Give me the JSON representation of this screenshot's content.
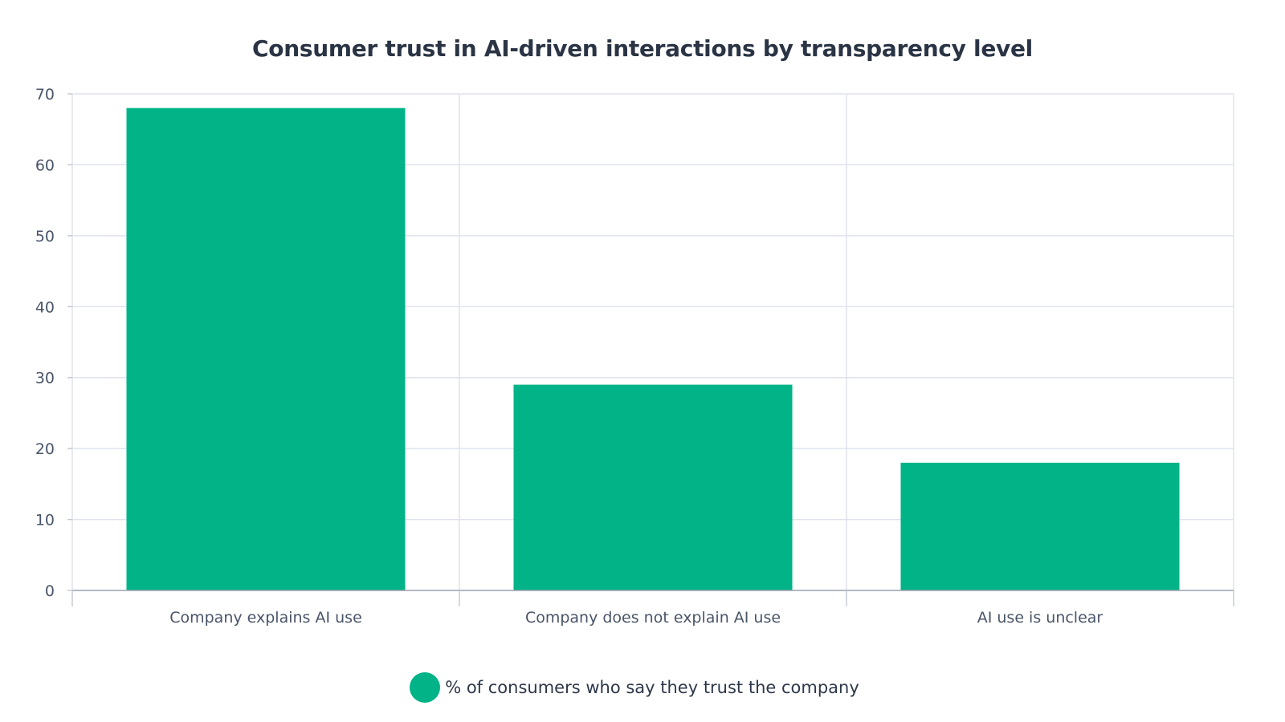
{
  "chart_data": {
    "type": "bar",
    "title": "Consumer trust in AI-driven interactions by transparency level",
    "xlabel": "",
    "ylabel": "",
    "categories": [
      "Company explains AI use",
      "Company does not explain AI use",
      "AI use is unclear"
    ],
    "series": [
      {
        "name": "% of consumers who say they trust the company",
        "values": [
          68,
          29,
          18
        ],
        "color": "#02b388"
      }
    ],
    "ylim": [
      0,
      70
    ],
    "yticks": [
      0,
      10,
      20,
      30,
      40,
      50,
      60,
      70
    ],
    "grid": true,
    "legend_position": "bottom-center"
  }
}
